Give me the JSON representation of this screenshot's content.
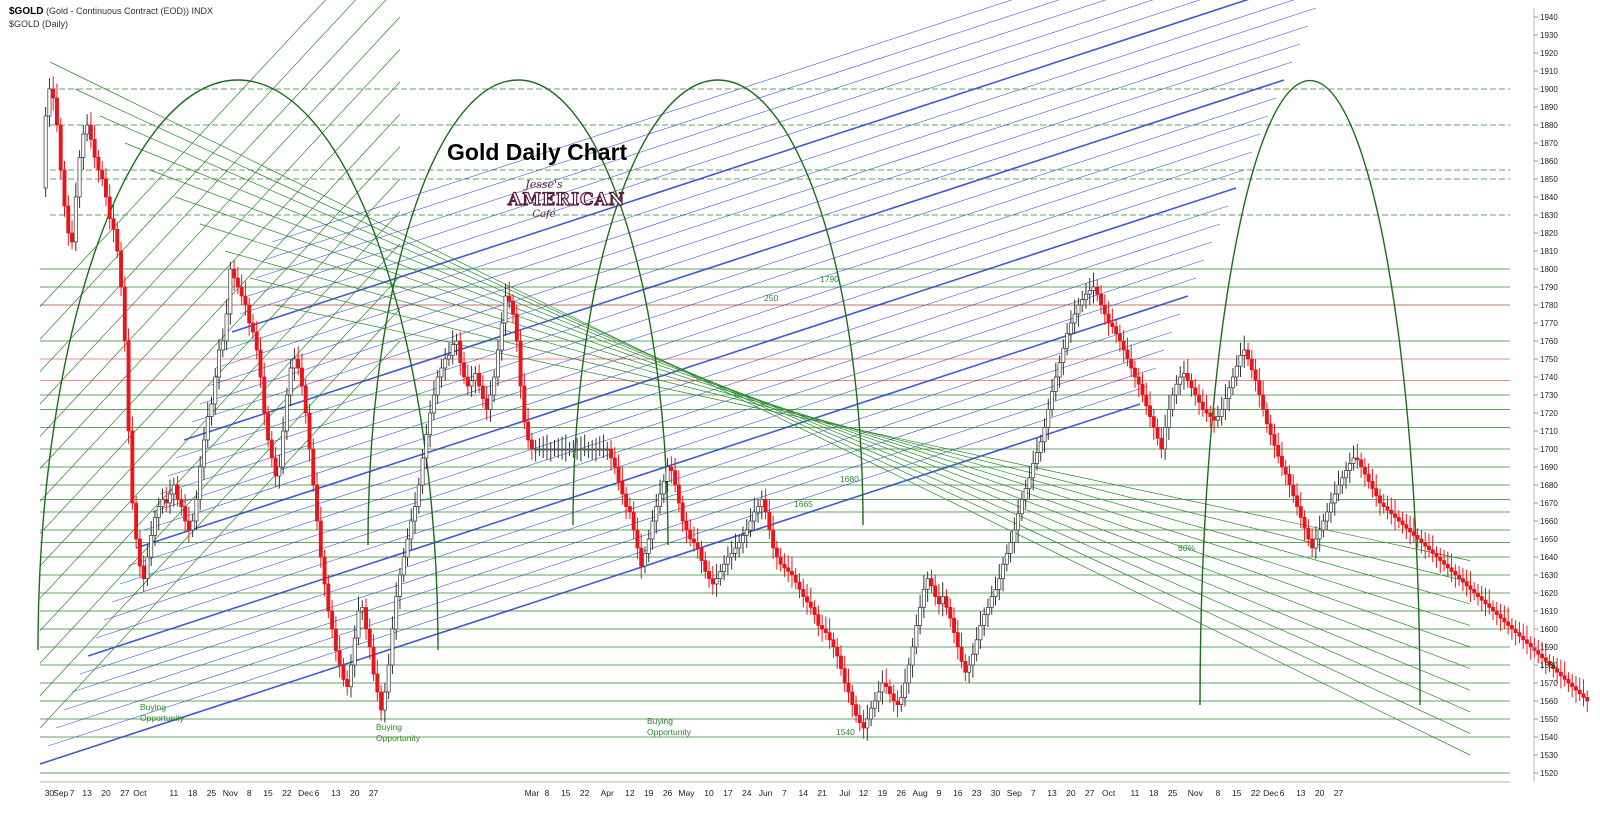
{
  "header": {
    "symbol": "$GOLD",
    "description": "(Gold - Continuous Contract (EOD)) INDX",
    "series_label": "$GOLD (Daily)"
  },
  "title": "Gold Daily Chart",
  "logo": {
    "line1": "Jesse's",
    "line2": "AMERICAN",
    "line3": "Café"
  },
  "annotations": [
    "Buying Opportunity",
    "Buying Opportunity",
    "Buying Opportunity",
    "250",
    "1790",
    "1680",
    "1665",
    "60%",
    "1540"
  ],
  "colors": {
    "up": "#ffffff",
    "down": "#e8161b",
    "green_line": "#2a8a2a",
    "blue_line": "#1f3ccc",
    "red_line": "#e86060",
    "arc": "#1a6e1a"
  },
  "chart_data": {
    "type": "candlestick",
    "title": "Gold Daily Chart",
    "ylim": [
      1515,
      1945
    ],
    "y_ticks": [
      1520,
      1530,
      1540,
      1550,
      1560,
      1570,
      1580,
      1590,
      1600,
      1610,
      1620,
      1630,
      1640,
      1650,
      1660,
      1670,
      1680,
      1690,
      1700,
      1710,
      1720,
      1730,
      1740,
      1750,
      1760,
      1770,
      1780,
      1790,
      1800,
      1810,
      1820,
      1830,
      1840,
      1850,
      1860,
      1870,
      1880,
      1890,
      1900,
      1910,
      1920,
      1930,
      1940
    ],
    "x_ticks": [
      {
        "label": "30",
        "i": 2
      },
      {
        "label": "Sep",
        "i": 5
      },
      {
        "label": "7",
        "i": 8
      },
      {
        "label": "13",
        "i": 12
      },
      {
        "label": "20",
        "i": 17
      },
      {
        "label": "27",
        "i": 22
      },
      {
        "label": "Oct",
        "i": 26
      },
      {
        "label": "11",
        "i": 35
      },
      {
        "label": "18",
        "i": 40
      },
      {
        "label": "25",
        "i": 45
      },
      {
        "label": "Nov",
        "i": 50
      },
      {
        "label": "8",
        "i": 55
      },
      {
        "label": "15",
        "i": 60
      },
      {
        "label": "22",
        "i": 65
      },
      {
        "label": "Dec",
        "i": 70
      },
      {
        "label": "6",
        "i": 73
      },
      {
        "label": "13",
        "i": 78
      },
      {
        "label": "20",
        "i": 83
      },
      {
        "label": "27",
        "i": 88
      },
      {
        "label": "Mar",
        "i": 130
      },
      {
        "label": "8",
        "i": 134
      },
      {
        "label": "15",
        "i": 139
      },
      {
        "label": "22",
        "i": 144
      },
      {
        "label": "Apr",
        "i": 150
      },
      {
        "label": "12",
        "i": 156
      },
      {
        "label": "19",
        "i": 161
      },
      {
        "label": "26",
        "i": 166
      },
      {
        "label": "May",
        "i": 171
      },
      {
        "label": "10",
        "i": 177
      },
      {
        "label": "17",
        "i": 182
      },
      {
        "label": "24",
        "i": 187
      },
      {
        "label": "Jun",
        "i": 192
      },
      {
        "label": "7",
        "i": 197
      },
      {
        "label": "14",
        "i": 202
      },
      {
        "label": "21",
        "i": 207
      },
      {
        "label": "Jul",
        "i": 213
      },
      {
        "label": "12",
        "i": 218
      },
      {
        "label": "19",
        "i": 223
      },
      {
        "label": "26",
        "i": 228
      },
      {
        "label": "Aug",
        "i": 233
      },
      {
        "label": "9",
        "i": 238
      },
      {
        "label": "16",
        "i": 243
      },
      {
        "label": "23",
        "i": 248
      },
      {
        "label": "30",
        "i": 253
      },
      {
        "label": "Sep",
        "i": 258
      },
      {
        "label": "7",
        "i": 263
      },
      {
        "label": "13",
        "i": 268
      },
      {
        "label": "20",
        "i": 273
      },
      {
        "label": "27",
        "i": 278
      },
      {
        "label": "Oct",
        "i": 283
      },
      {
        "label": "11",
        "i": 290
      },
      {
        "label": "18",
        "i": 295
      },
      {
        "label": "25",
        "i": 300
      },
      {
        "label": "Nov",
        "i": 306
      },
      {
        "label": "8",
        "i": 312
      },
      {
        "label": "15",
        "i": 317
      },
      {
        "label": "22",
        "i": 322
      },
      {
        "label": "Dec",
        "i": 326
      },
      {
        "label": "6",
        "i": 329
      },
      {
        "label": "13",
        "i": 334
      },
      {
        "label": "20",
        "i": 339
      },
      {
        "label": "27",
        "i": 344
      }
    ],
    "x_count": 390,
    "close": [
      1845,
      1885,
      1900,
      1895,
      1880,
      1855,
      1835,
      1820,
      1815,
      1840,
      1862,
      1875,
      1880,
      1872,
      1862,
      1855,
      1850,
      1840,
      1828,
      1822,
      1810,
      1790,
      1760,
      1710,
      1670,
      1650,
      1635,
      1628,
      1640,
      1652,
      1662,
      1668,
      1672,
      1670,
      1675,
      1680,
      1672,
      1668,
      1660,
      1655,
      1660,
      1672,
      1690,
      1705,
      1718,
      1725,
      1740,
      1755,
      1760,
      1775,
      1800,
      1795,
      1790,
      1785,
      1780,
      1770,
      1765,
      1755,
      1740,
      1720,
      1705,
      1695,
      1685,
      1690,
      1710,
      1730,
      1745,
      1750,
      1745,
      1735,
      1720,
      1700,
      1680,
      1660,
      1640,
      1625,
      1610,
      1600,
      1588,
      1580,
      1572,
      1568,
      1580,
      1595,
      1610,
      1612,
      1600,
      1590,
      1575,
      1565,
      1555,
      1565,
      1580,
      1600,
      1618,
      1630,
      1640,
      1650,
      1660,
      1668,
      1680,
      1695,
      1708,
      1720,
      1730,
      1740,
      1745,
      1750,
      1752,
      1758,
      1760,
      1748,
      1740,
      1735,
      1738,
      1742,
      1735,
      1728,
      1722,
      1730,
      1740,
      1755,
      1770,
      1785,
      1782,
      1775,
      1760,
      1735,
      1715,
      1705,
      1700,
      1700,
      1700,
      1700,
      1700,
      1700,
      1700,
      1700,
      1700,
      1700,
      1700,
      1700,
      1700,
      1700,
      1700,
      1700,
      1700,
      1700,
      1700,
      1700,
      1700,
      1695,
      1690,
      1682,
      1675,
      1668,
      1665,
      1655,
      1645,
      1635,
      1642,
      1650,
      1660,
      1668,
      1675,
      1682,
      1690,
      1688,
      1680,
      1670,
      1660,
      1655,
      1650,
      1648,
      1645,
      1638,
      1632,
      1628,
      1625,
      1628,
      1632,
      1636,
      1640,
      1642,
      1645,
      1648,
      1652,
      1655,
      1660,
      1665,
      1668,
      1672,
      1665,
      1655,
      1645,
      1640,
      1636,
      1634,
      1632,
      1630,
      1626,
      1622,
      1618,
      1615,
      1612,
      1608,
      1602,
      1600,
      1598,
      1594,
      1590,
      1585,
      1578,
      1570,
      1565,
      1558,
      1552,
      1548,
      1545,
      1550,
      1556,
      1560,
      1565,
      1570,
      1568,
      1564,
      1560,
      1558,
      1562,
      1570,
      1580,
      1590,
      1602,
      1612,
      1622,
      1628,
      1624,
      1618,
      1614,
      1618,
      1612,
      1606,
      1598,
      1590,
      1582,
      1576,
      1580,
      1586,
      1594,
      1602,
      1608,
      1612,
      1618,
      1622,
      1628,
      1636,
      1642,
      1648,
      1655,
      1664,
      1672,
      1678,
      1684,
      1692,
      1698,
      1704,
      1712,
      1722,
      1732,
      1740,
      1748,
      1756,
      1764,
      1770,
      1775,
      1780,
      1783,
      1786,
      1788,
      1790,
      1786,
      1780,
      1775,
      1770,
      1768,
      1764,
      1760,
      1755,
      1750,
      1745,
      1740,
      1736,
      1730,
      1724,
      1718,
      1712,
      1706,
      1700,
      1712,
      1722,
      1730,
      1736,
      1740,
      1742,
      1738,
      1734,
      1730,
      1726,
      1722,
      1720,
      1718,
      1716,
      1718,
      1722,
      1728,
      1734,
      1740,
      1746,
      1752,
      1755,
      1750,
      1744,
      1738,
      1730,
      1722,
      1714,
      1708,
      1702,
      1696,
      1690,
      1686,
      1680,
      1674,
      1668,
      1662,
      1656,
      1650,
      1645,
      1650,
      1655,
      1660,
      1665,
      1670,
      1675,
      1680,
      1684,
      1688,
      1692,
      1695,
      1694,
      1690,
      1686,
      1682,
      1678,
      1674,
      1670,
      1668,
      1666,
      1664,
      1662,
      1660,
      1658,
      1656,
      1654,
      1652,
      1650,
      1648,
      1646,
      1644,
      1642,
      1640,
      1638,
      1636,
      1634,
      1632,
      1630,
      1628,
      1626,
      1624,
      1622,
      1620,
      1618,
      1616,
      1614,
      1612,
      1610,
      1608,
      1606,
      1604,
      1602,
      1600,
      1598,
      1596,
      1594,
      1592,
      1590,
      1588,
      1586,
      1584,
      1582,
      1580,
      1578,
      1576,
      1574,
      1572,
      1570,
      1568,
      1566,
      1564,
      1562,
      1560
    ]
  }
}
